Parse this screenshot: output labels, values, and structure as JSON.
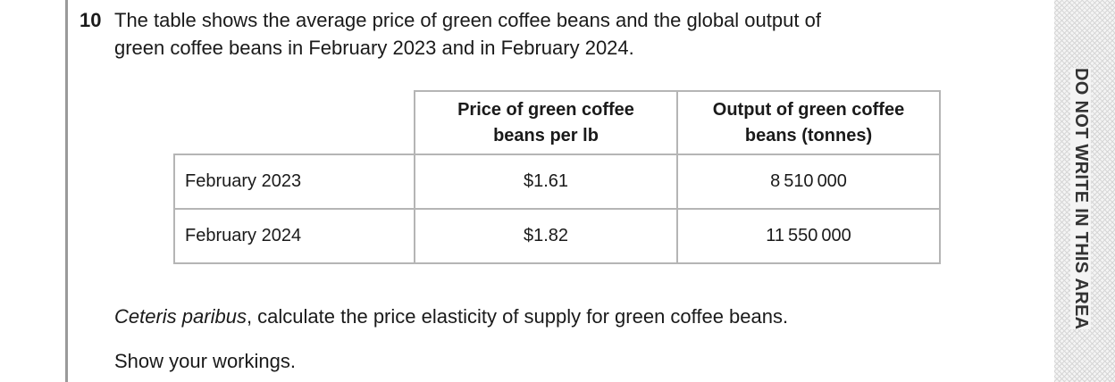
{
  "question": {
    "number": "10",
    "text_lines": [
      "The table shows the average price of green coffee beans and the global output of",
      "green coffee beans in February 2023 and in February 2024."
    ]
  },
  "table": {
    "headers": [
      "Price of green coffee beans per lb",
      "Output of green coffee beans (tonnes)"
    ],
    "rows": [
      [
        "February 2023",
        "$1.61",
        "8 510 000"
      ],
      [
        "February 2024",
        "$1.82",
        "11 550 000"
      ]
    ]
  },
  "instruction": {
    "italic": "Ceteris paribus",
    "text": ", calculate the price elasticity of supply for green coffee beans."
  },
  "workings": "Show your workings.",
  "margin_note": "DO NOT WRITE IN THIS AREA"
}
